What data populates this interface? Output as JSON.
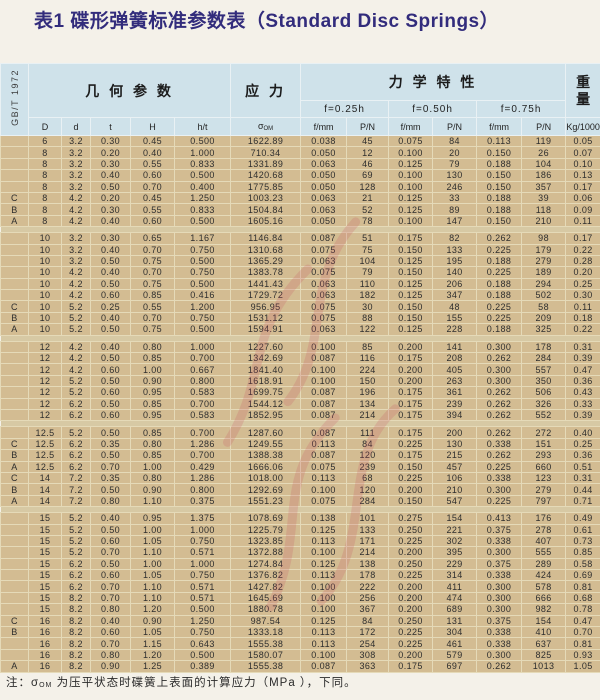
{
  "title": "表1 碟形弹簧标准参数表（Standard Disc Springs）",
  "colors": {
    "title_text": "#322c7c",
    "header_bg": "#cfe2ea",
    "cell_bg": "#d3bc92",
    "grid_line": "#e5dab8",
    "page_bg": "#f4f1e9",
    "watermark": "#c95065"
  },
  "header": {
    "standard": "GB/T 1972",
    "geometry": "几 何 参 数",
    "stress": "应 力",
    "mechanical": "力 学 特 性",
    "weight_line1": "重",
    "weight_line2": "量",
    "deflection_cols": [
      "f=0.25h",
      "f=0.50h",
      "f=0.75h"
    ],
    "param_cols": [
      "D",
      "d",
      "t",
      "H",
      "h/t"
    ],
    "sigma_symbol": "σ",
    "sigma_sub": "OM",
    "unit_cols": [
      "f/mm",
      "P/N",
      "f/mm",
      "P/N",
      "f/mm",
      "P/N"
    ],
    "weight_unit": "Kg/1000"
  },
  "table": {
    "groups": [
      {
        "rows": [
          [
            "",
            "6",
            "3.2",
            "0.30",
            "0.45",
            "0.500",
            "1622.89",
            "0.038",
            "45",
            "0.075",
            "84",
            "0.113",
            "119",
            "0.05"
          ],
          [
            "",
            "8",
            "3.2",
            "0.20",
            "0.40",
            "1.000",
            "710.34",
            "0.050",
            "12",
            "0.100",
            "20",
            "0.150",
            "26",
            "0.07"
          ],
          [
            "",
            "8",
            "3.2",
            "0.30",
            "0.55",
            "0.833",
            "1331.89",
            "0.063",
            "46",
            "0.125",
            "79",
            "0.188",
            "104",
            "0.10"
          ],
          [
            "",
            "8",
            "3.2",
            "0.40",
            "0.60",
            "0.500",
            "1420.68",
            "0.050",
            "69",
            "0.100",
            "130",
            "0.150",
            "186",
            "0.13"
          ],
          [
            "",
            "8",
            "3.2",
            "0.50",
            "0.70",
            "0.400",
            "1775.85",
            "0.050",
            "128",
            "0.100",
            "246",
            "0.150",
            "357",
            "0.17"
          ],
          [
            "C",
            "8",
            "4.2",
            "0.20",
            "0.45",
            "1.250",
            "1003.23",
            "0.063",
            "21",
            "0.125",
            "33",
            "0.188",
            "39",
            "0.06"
          ],
          [
            "B",
            "8",
            "4.2",
            "0.30",
            "0.55",
            "0.833",
            "1504.84",
            "0.063",
            "52",
            "0.125",
            "89",
            "0.188",
            "118",
            "0.09"
          ],
          [
            "A",
            "8",
            "4.2",
            "0.40",
            "0.60",
            "0.500",
            "1605.16",
            "0.050",
            "78",
            "0.100",
            "147",
            "0.150",
            "210",
            "0.11"
          ]
        ]
      },
      {
        "rows": [
          [
            "",
            "10",
            "3.2",
            "0.30",
            "0.65",
            "1.167",
            "1146.84",
            "0.087",
            "51",
            "0.175",
            "82",
            "0.262",
            "98",
            "0.17"
          ],
          [
            "",
            "10",
            "3.2",
            "0.40",
            "0.70",
            "0.750",
            "1310.68",
            "0.075",
            "75",
            "0.150",
            "133",
            "0.225",
            "179",
            "0.22"
          ],
          [
            "",
            "10",
            "3.2",
            "0.50",
            "0.75",
            "0.500",
            "1365.29",
            "0.063",
            "104",
            "0.125",
            "195",
            "0.188",
            "279",
            "0.28"
          ],
          [
            "",
            "10",
            "4.2",
            "0.40",
            "0.70",
            "0.750",
            "1383.78",
            "0.075",
            "79",
            "0.150",
            "140",
            "0.225",
            "189",
            "0.20"
          ],
          [
            "",
            "10",
            "4.2",
            "0.50",
            "0.75",
            "0.500",
            "1441.43",
            "0.063",
            "110",
            "0.125",
            "206",
            "0.188",
            "294",
            "0.25"
          ],
          [
            "",
            "10",
            "4.2",
            "0.60",
            "0.85",
            "0.416",
            "1729.72",
            "0.063",
            "182",
            "0.125",
            "347",
            "0.188",
            "502",
            "0.30"
          ],
          [
            "C",
            "10",
            "5.2",
            "0.25",
            "0.55",
            "1.200",
            "956.95",
            "0.075",
            "30",
            "0.150",
            "48",
            "0.225",
            "58",
            "0.11"
          ],
          [
            "B",
            "10",
            "5.2",
            "0.40",
            "0.70",
            "0.750",
            "1531.12",
            "0.075",
            "88",
            "0.150",
            "155",
            "0.225",
            "209",
            "0.18"
          ],
          [
            "A",
            "10",
            "5.2",
            "0.50",
            "0.75",
            "0.500",
            "1594.91",
            "0.063",
            "122",
            "0.125",
            "228",
            "0.188",
            "325",
            "0.22"
          ]
        ]
      },
      {
        "rows": [
          [
            "",
            "12",
            "4.2",
            "0.40",
            "0.80",
            "1.000",
            "1227.60",
            "0.100",
            "85",
            "0.200",
            "141",
            "0.300",
            "178",
            "0.31"
          ],
          [
            "",
            "12",
            "4.2",
            "0.50",
            "0.85",
            "0.700",
            "1342.69",
            "0.087",
            "116",
            "0.175",
            "208",
            "0.262",
            "284",
            "0.39"
          ],
          [
            "",
            "12",
            "4.2",
            "0.60",
            "1.00",
            "0.667",
            "1841.40",
            "0.100",
            "224",
            "0.200",
            "405",
            "0.300",
            "557",
            "0.47"
          ],
          [
            "",
            "12",
            "5.2",
            "0.50",
            "0.90",
            "0.800",
            "1618.91",
            "0.100",
            "150",
            "0.200",
            "263",
            "0.300",
            "350",
            "0.36"
          ],
          [
            "",
            "12",
            "5.2",
            "0.60",
            "0.95",
            "0.583",
            "1699.75",
            "0.087",
            "196",
            "0.175",
            "361",
            "0.262",
            "506",
            "0.43"
          ],
          [
            "",
            "12",
            "6.2",
            "0.50",
            "0.85",
            "0.700",
            "1544.12",
            "0.087",
            "134",
            "0.175",
            "239",
            "0.262",
            "326",
            "0.33"
          ],
          [
            "",
            "12",
            "6.2",
            "0.60",
            "0.95",
            "0.583",
            "1852.95",
            "0.087",
            "214",
            "0.175",
            "394",
            "0.262",
            "552",
            "0.39"
          ]
        ]
      },
      {
        "rows": [
          [
            "",
            "12.5",
            "5.2",
            "0.50",
            "0.85",
            "0.700",
            "1287.60",
            "0.087",
            "111",
            "0.175",
            "200",
            "0.262",
            "272",
            "0.40"
          ],
          [
            "C",
            "12.5",
            "6.2",
            "0.35",
            "0.80",
            "1.286",
            "1249.55",
            "0.113",
            "84",
            "0.225",
            "130",
            "0.338",
            "151",
            "0.25"
          ],
          [
            "B",
            "12.5",
            "6.2",
            "0.50",
            "0.85",
            "0.700",
            "1388.38",
            "0.087",
            "120",
            "0.175",
            "215",
            "0.262",
            "293",
            "0.36"
          ],
          [
            "A",
            "12.5",
            "6.2",
            "0.70",
            "1.00",
            "0.429",
            "1666.06",
            "0.075",
            "239",
            "0.150",
            "457",
            "0.225",
            "660",
            "0.51"
          ],
          [
            "C",
            "14",
            "7.2",
            "0.35",
            "0.80",
            "1.286",
            "1018.00",
            "0.113",
            "68",
            "0.225",
            "106",
            "0.338",
            "123",
            "0.31"
          ],
          [
            "B",
            "14",
            "7.2",
            "0.50",
            "0.90",
            "0.800",
            "1292.69",
            "0.100",
            "120",
            "0.200",
            "210",
            "0.300",
            "279",
            "0.44"
          ],
          [
            "A",
            "14",
            "7.2",
            "0.80",
            "1.10",
            "0.375",
            "1551.23",
            "0.075",
            "284",
            "0.150",
            "547",
            "0.225",
            "797",
            "0.71"
          ]
        ]
      },
      {
        "rows": [
          [
            "",
            "15",
            "5.2",
            "0.40",
            "0.95",
            "1.375",
            "1078.69",
            "0.138",
            "101",
            "0.275",
            "154",
            "0.413",
            "176",
            "0.49"
          ],
          [
            "",
            "15",
            "5.2",
            "0.50",
            "1.00",
            "1.000",
            "1225.79",
            "0.125",
            "133",
            "0.250",
            "221",
            "0.375",
            "278",
            "0.61"
          ],
          [
            "",
            "15",
            "5.2",
            "0.60",
            "1.05",
            "0.750",
            "1323.85",
            "0.113",
            "171",
            "0.225",
            "302",
            "0.338",
            "407",
            "0.73"
          ],
          [
            "",
            "15",
            "5.2",
            "0.70",
            "1.10",
            "0.571",
            "1372.88",
            "0.100",
            "214",
            "0.200",
            "395",
            "0.300",
            "555",
            "0.85"
          ],
          [
            "",
            "15",
            "6.2",
            "0.50",
            "1.00",
            "1.000",
            "1274.84",
            "0.125",
            "138",
            "0.250",
            "229",
            "0.375",
            "289",
            "0.58"
          ],
          [
            "",
            "15",
            "6.2",
            "0.60",
            "1.05",
            "0.750",
            "1376.82",
            "0.113",
            "178",
            "0.225",
            "314",
            "0.338",
            "424",
            "0.69"
          ],
          [
            "",
            "15",
            "6.2",
            "0.70",
            "1.10",
            "0.571",
            "1427.82",
            "0.100",
            "222",
            "0.200",
            "411",
            "0.300",
            "578",
            "0.81"
          ],
          [
            "",
            "15",
            "8.2",
            "0.70",
            "1.10",
            "0.571",
            "1645.69",
            "0.100",
            "256",
            "0.200",
            "474",
            "0.300",
            "666",
            "0.68"
          ],
          [
            "",
            "15",
            "8.2",
            "0.80",
            "1.20",
            "0.500",
            "1880.78",
            "0.100",
            "367",
            "0.200",
            "689",
            "0.300",
            "982",
            "0.78"
          ],
          [
            "C",
            "16",
            "8.2",
            "0.40",
            "0.90",
            "1.250",
            "987.54",
            "0.125",
            "84",
            "0.250",
            "131",
            "0.375",
            "154",
            "0.47"
          ],
          [
            "B",
            "16",
            "8.2",
            "0.60",
            "1.05",
            "0.750",
            "1333.18",
            "0.113",
            "172",
            "0.225",
            "304",
            "0.338",
            "410",
            "0.70"
          ],
          [
            "",
            "16",
            "8.2",
            "0.70",
            "1.15",
            "0.643",
            "1555.38",
            "0.113",
            "254",
            "0.225",
            "461",
            "0.338",
            "637",
            "0.81"
          ],
          [
            "",
            "16",
            "8.2",
            "0.80",
            "1.20",
            "0.500",
            "1580.07",
            "0.100",
            "308",
            "0.200",
            "579",
            "0.300",
            "825",
            "0.93"
          ],
          [
            "A",
            "16",
            "8.2",
            "0.90",
            "1.25",
            "0.389",
            "1555.38",
            "0.087",
            "363",
            "0.175",
            "697",
            "0.262",
            "1013",
            "1.05"
          ]
        ]
      }
    ]
  },
  "note": {
    "prefix": "注：",
    "sigma": "σ",
    "sigma_sub": "OM",
    "text": "为压平状态时碟簧上表面的计算应力（MPa ），下同。"
  }
}
